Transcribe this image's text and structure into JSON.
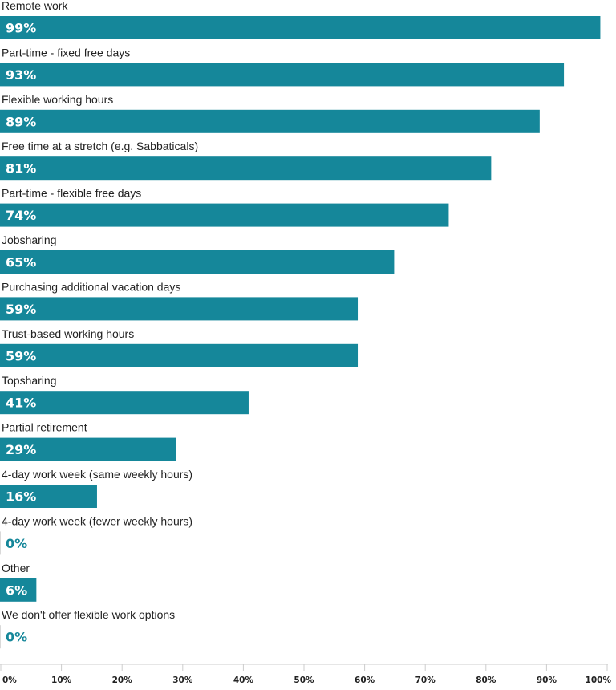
{
  "chart_data": {
    "type": "bar",
    "orientation": "horizontal",
    "categories": [
      "Remote work",
      "Part-time - fixed free days",
      "Flexible working hours",
      "Free time at a stretch (e.g. Sabbaticals)",
      "Part-time - flexible free days",
      "Jobsharing",
      "Purchasing additional vacation days",
      "Trust-based working hours",
      "Topsharing",
      "Partial retirement",
      "4-day work week (same weekly hours)",
      "4-day work week (fewer weekly hours)",
      "Other",
      "We don't offer flexible work options"
    ],
    "values": [
      99,
      93,
      89,
      81,
      74,
      65,
      59,
      59,
      41,
      29,
      16,
      0,
      6,
      0
    ],
    "value_labels": [
      "99%",
      "93%",
      "89%",
      "81%",
      "74%",
      "65%",
      "59%",
      "59%",
      "41%",
      "29%",
      "16%",
      "0%",
      "6%",
      "0%"
    ],
    "xlim": [
      0,
      100
    ],
    "ticks": [
      0,
      10,
      20,
      30,
      40,
      50,
      60,
      70,
      80,
      90,
      100
    ],
    "tick_labels": [
      "0%",
      "10%",
      "20%",
      "30%",
      "40%",
      "50%",
      "60%",
      "70%",
      "80%",
      "90%",
      "100%"
    ],
    "grid": false,
    "colors": {
      "bar": "#15879a",
      "bar_label": "#ffffff",
      "zero_label": "#15879a",
      "axis": "#cccccc"
    }
  }
}
